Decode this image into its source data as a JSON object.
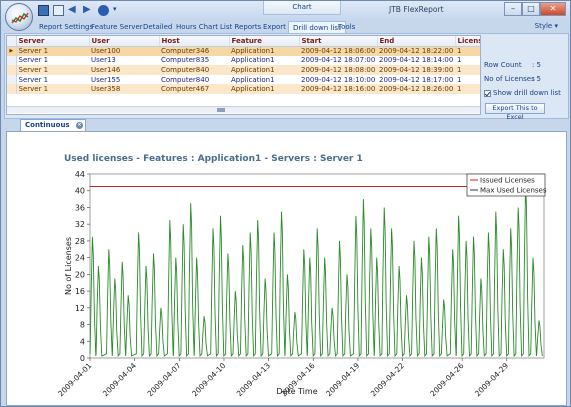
{
  "window": {
    "app_title": "JTB FlexReport",
    "context_tab": "Chart",
    "minimize": "–",
    "maximize": "□",
    "close": "✕"
  },
  "ribbon": {
    "tabs": [
      "Report Settings",
      "Feature Server",
      "Detailed",
      "Hours Chart",
      "List Reports",
      "Export",
      "Drill down list",
      "Tools"
    ],
    "active_tab": "Drill down list",
    "style_label": "Style"
  },
  "grid": {
    "columns": [
      "Server",
      "User",
      "Host",
      "Feature",
      "Start",
      "End",
      "Licenses"
    ],
    "rows": [
      [
        "Server 1",
        "User100",
        "Computer346",
        "Application1",
        "2009-04-12 18:06:00",
        "2009-04-12 18:22:00",
        "1"
      ],
      [
        "Server 1",
        "User13",
        "Computer835",
        "Application1",
        "2009-04-12 18:07:00",
        "2009-04-12 18:14:00",
        "1"
      ],
      [
        "Server 1",
        "User146",
        "Computer840",
        "Application1",
        "2009-04-12 18:08:00",
        "2009-04-12 18:39:00",
        "1"
      ],
      [
        "Server 1",
        "User155",
        "Computer840",
        "Application1",
        "2009-04-12 18:10:00",
        "2009-04-12 18:17:00",
        "1"
      ],
      [
        "Server 1",
        "User358",
        "Computer467",
        "Application1",
        "2009-04-12 18:16:00",
        "2009-04-12 18:26:00",
        "1"
      ]
    ],
    "row_indicator": "▶"
  },
  "side_panel": {
    "row_count_label": "Row Count",
    "row_count_value": ": 5",
    "licenses_label": "No of Licenses",
    "licenses_value": ": 5",
    "show_drill_label": "Show drill down list",
    "export_button": "Export This to Excel"
  },
  "doc_tab": {
    "label": "Continuous Chart",
    "close": "×"
  },
  "chart_data": {
    "type": "line",
    "title": "Used licenses - Features : Application1 - Servers : Server 1",
    "xlabel": "Date Time",
    "ylabel": "No of Licenses",
    "ylim": [
      0,
      44
    ],
    "yticks": [
      0,
      4,
      8,
      12,
      16,
      20,
      24,
      28,
      32,
      36,
      40,
      44
    ],
    "xticks": [
      "2009-04-01",
      "2009-04-04",
      "2009-04-07",
      "2009-04-10",
      "2009-04-13",
      "2009-04-16",
      "2009-04-19",
      "2009-04-22",
      "2009-04-26",
      "2009-04-29"
    ],
    "xrange_days": [
      0,
      30.5
    ],
    "series": [
      {
        "name": "Issued Licenses",
        "color": "#cc2222",
        "constant": 41
      },
      {
        "name": "Max Used Licenses",
        "color": "#2a8a2a",
        "peaks": [
          [
            0.2,
            29
          ],
          [
            0.6,
            22
          ],
          [
            1.3,
            26
          ],
          [
            1.7,
            19
          ],
          [
            2.2,
            23
          ],
          [
            2.6,
            15
          ],
          [
            3.3,
            30
          ],
          [
            3.8,
            22
          ],
          [
            4.3,
            25
          ],
          [
            4.8,
            12
          ],
          [
            5.4,
            33
          ],
          [
            5.8,
            24
          ],
          [
            6.3,
            32
          ],
          [
            6.8,
            37
          ],
          [
            7.2,
            24
          ],
          [
            7.7,
            10
          ],
          [
            8.3,
            31
          ],
          [
            8.8,
            34
          ],
          [
            9.3,
            25
          ],
          [
            9.8,
            16
          ],
          [
            10.3,
            27
          ],
          [
            10.8,
            30
          ],
          [
            11.3,
            33
          ],
          [
            11.8,
            19
          ],
          [
            12.4,
            30
          ],
          [
            12.9,
            35
          ],
          [
            13.3,
            20
          ],
          [
            13.8,
            11
          ],
          [
            14.4,
            26
          ],
          [
            14.8,
            24
          ],
          [
            15.3,
            31
          ],
          [
            15.8,
            24
          ],
          [
            16.3,
            12
          ],
          [
            16.8,
            28
          ],
          [
            17.3,
            20
          ],
          [
            17.9,
            34
          ],
          [
            18.4,
            38
          ],
          [
            18.9,
            31
          ],
          [
            19.3,
            24
          ],
          [
            19.8,
            36
          ],
          [
            20.3,
            31
          ],
          [
            20.8,
            22
          ],
          [
            21.3,
            15
          ],
          [
            21.8,
            28
          ],
          [
            22.3,
            24
          ],
          [
            22.8,
            29
          ],
          [
            23.3,
            31
          ],
          [
            23.8,
            14
          ],
          [
            24.4,
            26
          ],
          [
            24.8,
            34
          ],
          [
            25.3,
            28
          ],
          [
            25.8,
            29
          ],
          [
            26.3,
            19
          ],
          [
            26.8,
            30
          ],
          [
            27.3,
            35
          ],
          [
            27.8,
            26
          ],
          [
            28.3,
            31
          ],
          [
            28.8,
            36
          ],
          [
            29.3,
            42
          ],
          [
            29.8,
            24
          ],
          [
            30.2,
            9
          ]
        ]
      }
    ],
    "legend_position": "top-right"
  }
}
